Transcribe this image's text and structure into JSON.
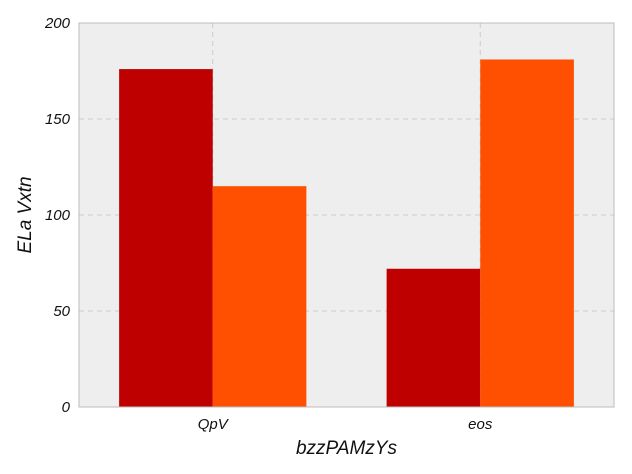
{
  "chart_data": {
    "type": "bar",
    "title": "",
    "xlabel": "bzzPAMzYs",
    "ylabel": "ELa Vxtn",
    "categories": [
      "QpV",
      "eos"
    ],
    "series": [
      {
        "values": [
          176,
          72
        ],
        "color": "#bf0000"
      },
      {
        "values": [
          115,
          181
        ],
        "color": "#ff4f00"
      }
    ],
    "ylim": [
      0,
      200
    ],
    "yticks": [
      0,
      50,
      100,
      150,
      200
    ],
    "grid": true,
    "legend": "none",
    "plot_background": "#eeeeee",
    "grid_color": "#cccccc"
  }
}
